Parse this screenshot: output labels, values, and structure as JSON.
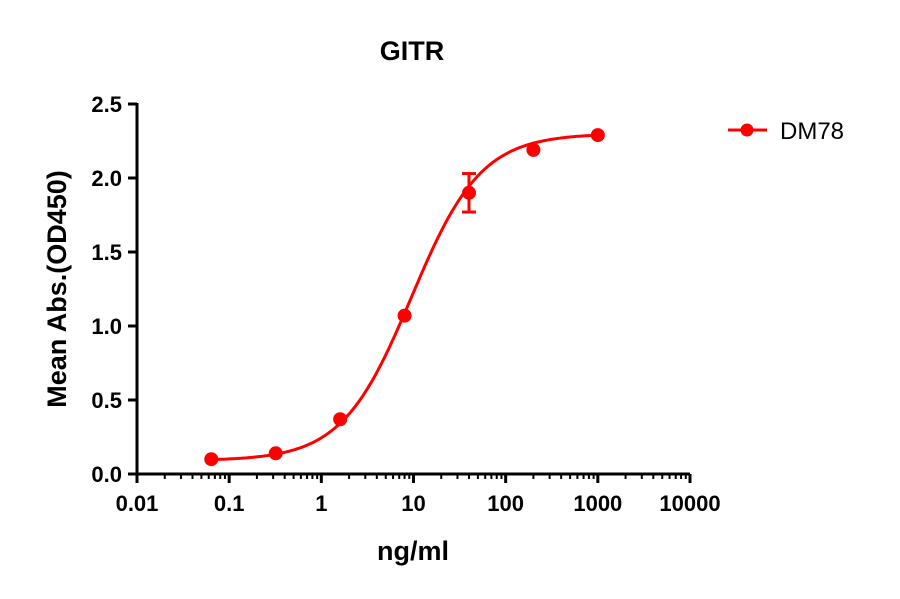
{
  "chart_data": {
    "type": "scatter",
    "title": "GITR",
    "xlabel": "ng/ml",
    "ylabel": "Mean Abs.(OD450)",
    "x_scale": "log",
    "xlim": [
      0.01,
      10000
    ],
    "ylim": [
      0,
      2.5
    ],
    "x_ticks": [
      "0.01",
      "0.1",
      "1",
      "10",
      "100",
      "1000",
      "10000"
    ],
    "y_ticks": [
      "0.0",
      "0.5",
      "1.0",
      "1.5",
      "2.0",
      "2.5"
    ],
    "grid": false,
    "legend_position": "right",
    "series": [
      {
        "name": "DM78",
        "color": "#ff0000",
        "x": [
          0.064,
          0.32,
          1.6,
          8,
          40,
          200,
          1000
        ],
        "y": [
          0.1,
          0.14,
          0.37,
          1.07,
          1.9,
          2.19,
          2.29
        ],
        "error": [
          0,
          0,
          0,
          0,
          0.13,
          0,
          0
        ],
        "fit": "sigmoidal curve"
      }
    ]
  }
}
